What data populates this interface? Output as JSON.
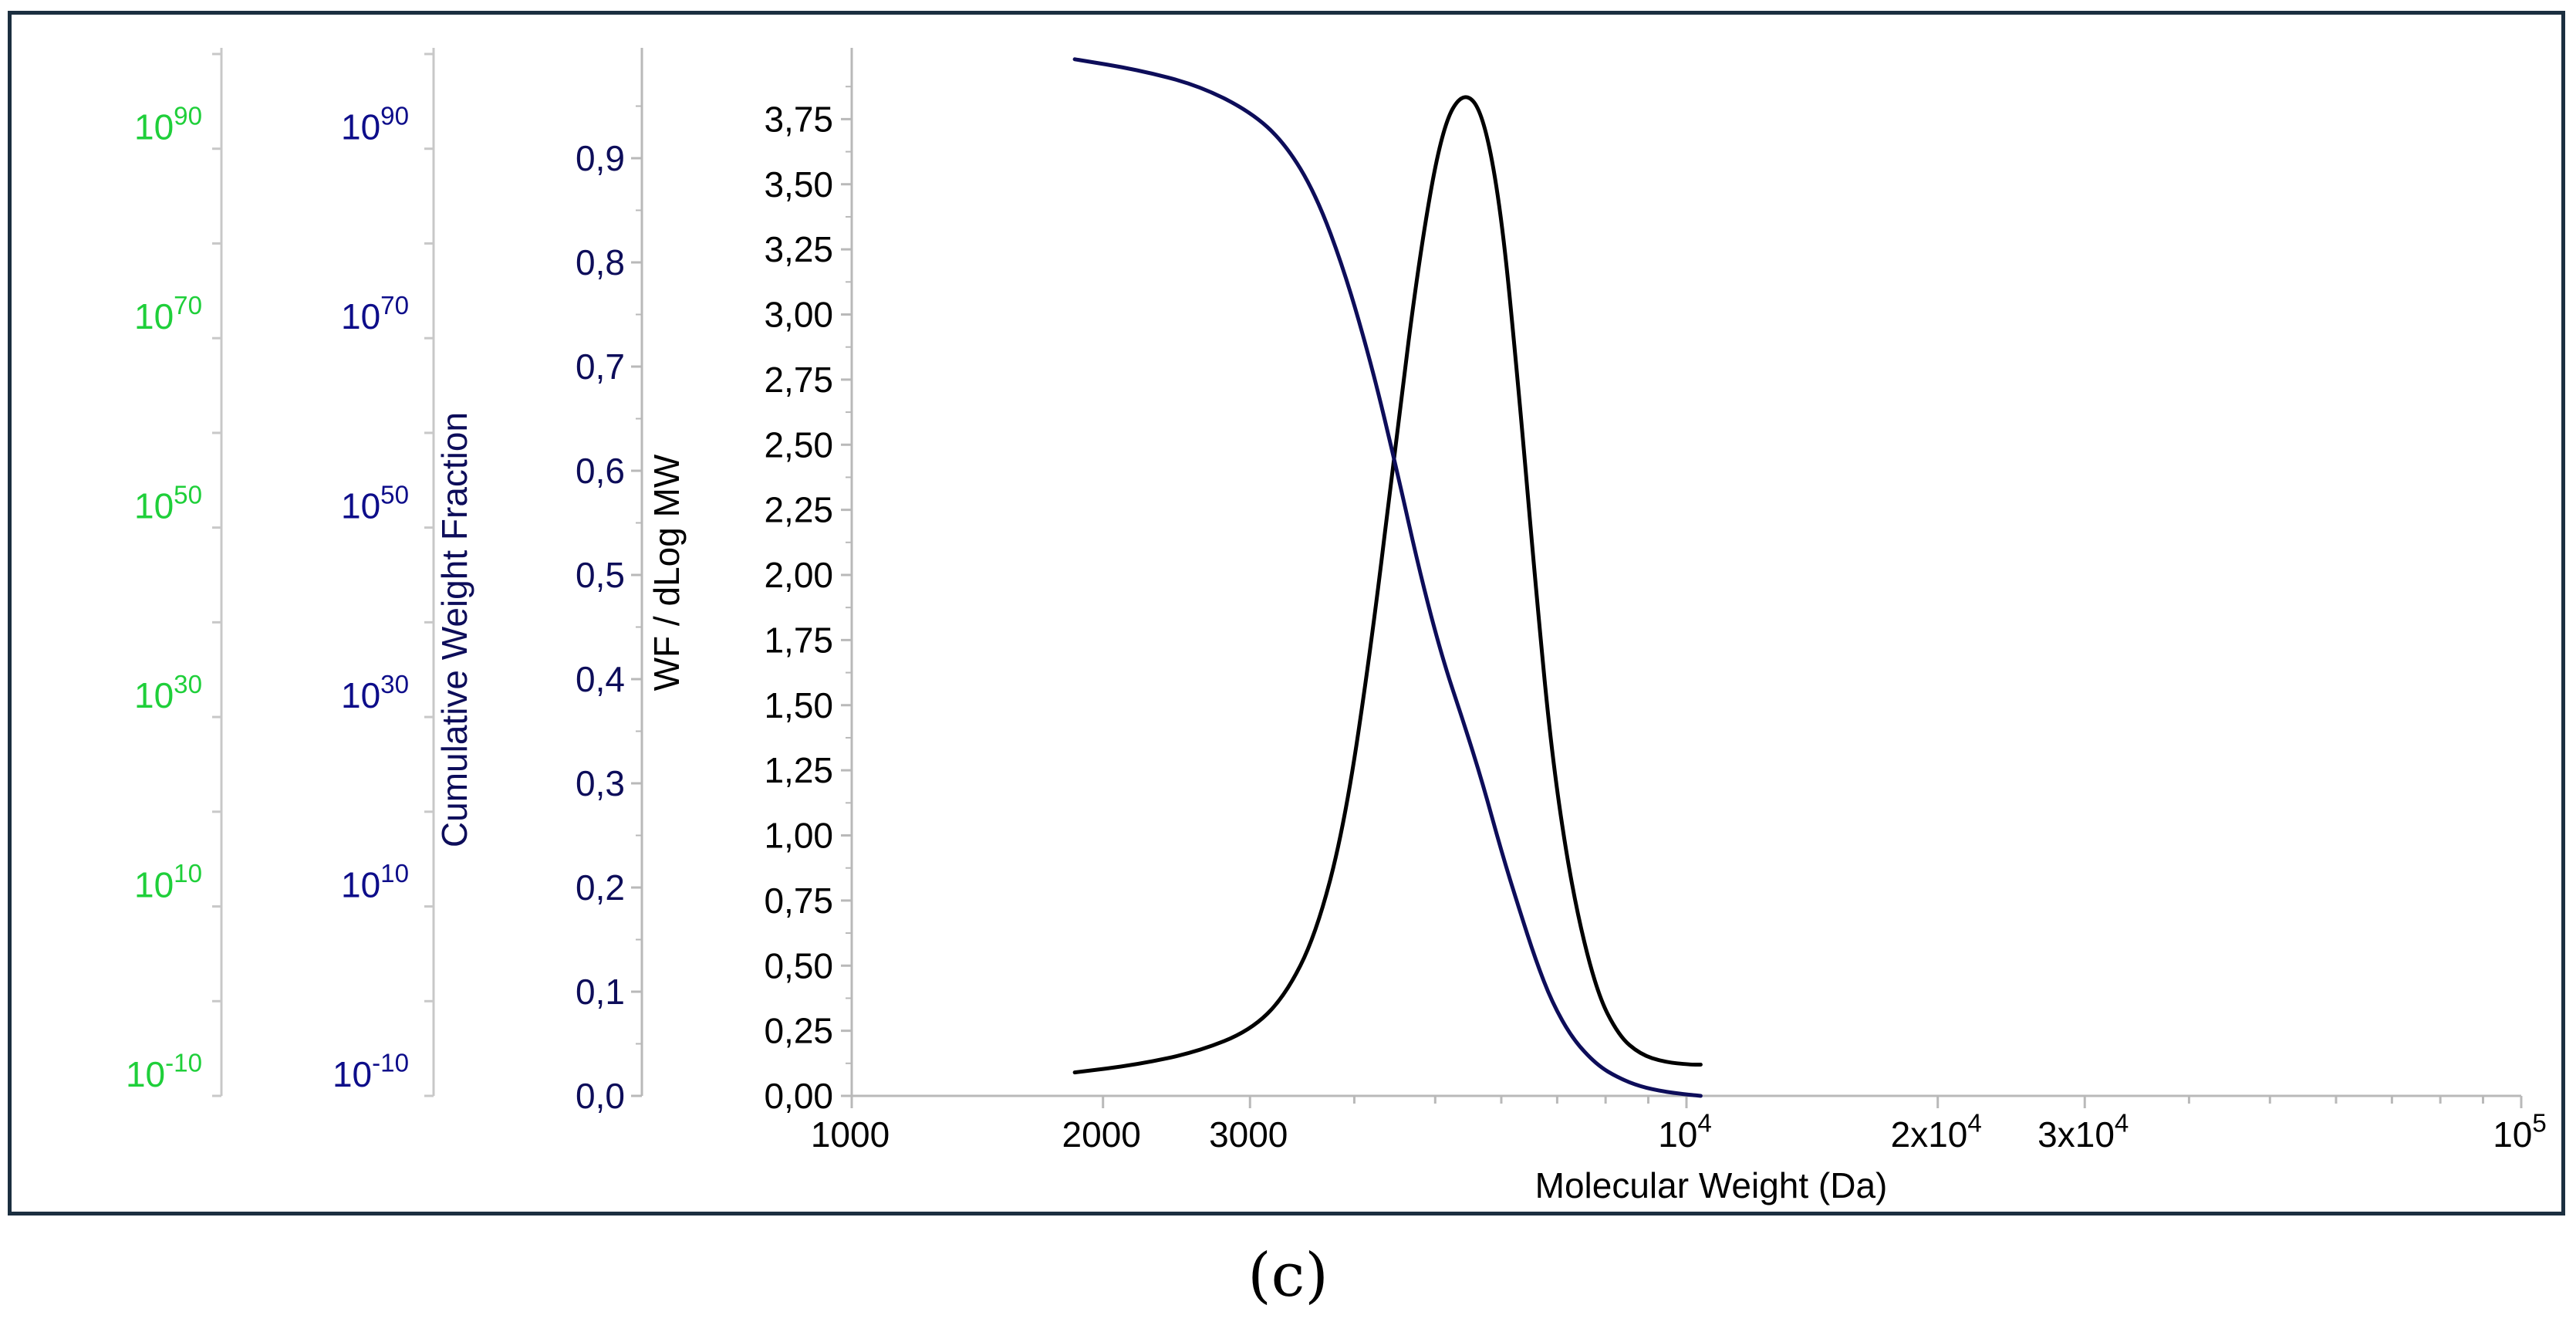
{
  "chart_data": {
    "type": "line",
    "xlabel": "Molecular Weight (Da)",
    "xscale": "log",
    "xlim": [
      1000,
      100000
    ],
    "x_ticks": [
      {
        "value": 1000,
        "base": "1000",
        "exp": ""
      },
      {
        "value": 2000,
        "base": "2000",
        "exp": ""
      },
      {
        "value": 3000,
        "base": "3000",
        "exp": ""
      },
      {
        "value": 10000,
        "base": "10",
        "exp": "4"
      },
      {
        "value": 20000,
        "base": "2x10",
        "exp": "4"
      },
      {
        "value": 30000,
        "base": "3x10",
        "exp": "4"
      },
      {
        "value": 100000,
        "base": "10",
        "exp": "5"
      }
    ],
    "y_axes": [
      {
        "id": "wf",
        "label": "WF / dLog MW",
        "color": "#000000",
        "range": [
          0,
          4
        ],
        "ticks": [
          "0,00",
          "0,25",
          "0,50",
          "0,75",
          "1,00",
          "1,25",
          "1,50",
          "1,75",
          "2,00",
          "2,25",
          "2,50",
          "2,75",
          "3,00",
          "3,25",
          "3,50",
          "3,75"
        ]
      },
      {
        "id": "cwf",
        "label": "Cumulative Weight Fraction",
        "color": "#0d0d5a",
        "range": [
          0,
          1.0
        ],
        "ticks": [
          "0,0",
          "0,1",
          "0,2",
          "0,3",
          "0,4",
          "0,5",
          "0,6",
          "0,7",
          "0,8",
          "0,9"
        ]
      },
      {
        "id": "log-blue",
        "label": "",
        "color": "#0d0d8a",
        "ticks": [
          {
            "base": "10",
            "exp": "-10"
          },
          {
            "base": "10",
            "exp": "10"
          },
          {
            "base": "10",
            "exp": "30"
          },
          {
            "base": "10",
            "exp": "50"
          },
          {
            "base": "10",
            "exp": "70"
          },
          {
            "base": "10",
            "exp": "90"
          }
        ]
      },
      {
        "id": "log-green",
        "label": "",
        "color": "#1fcf3a",
        "ticks": [
          {
            "base": "10",
            "exp": "-10"
          },
          {
            "base": "10",
            "exp": "10"
          },
          {
            "base": "10",
            "exp": "30"
          },
          {
            "base": "10",
            "exp": "50"
          },
          {
            "base": "10",
            "exp": "70"
          },
          {
            "base": "10",
            "exp": "90"
          }
        ]
      }
    ],
    "series": [
      {
        "name": "WF / dLog MW",
        "axis": "wf",
        "color": "#000000",
        "points": [
          [
            1850,
            0.09
          ],
          [
            2200,
            0.12
          ],
          [
            2600,
            0.17
          ],
          [
            3000,
            0.25
          ],
          [
            3300,
            0.38
          ],
          [
            3600,
            0.62
          ],
          [
            3900,
            1.05
          ],
          [
            4200,
            1.75
          ],
          [
            4500,
            2.55
          ],
          [
            4800,
            3.25
          ],
          [
            5100,
            3.72
          ],
          [
            5400,
            3.86
          ],
          [
            5700,
            3.78
          ],
          [
            6000,
            3.4
          ],
          [
            6300,
            2.7
          ],
          [
            6600,
            1.95
          ],
          [
            6900,
            1.3
          ],
          [
            7300,
            0.78
          ],
          [
            7800,
            0.4
          ],
          [
            8300,
            0.23
          ],
          [
            8800,
            0.16
          ],
          [
            9400,
            0.13
          ],
          [
            10100,
            0.12
          ],
          [
            10400,
            0.12
          ]
        ]
      },
      {
        "name": "Cumulative Weight Fraction",
        "axis": "cwf",
        "color": "#0d0d5a",
        "points": [
          [
            1850,
            0.995
          ],
          [
            2200,
            0.985
          ],
          [
            2600,
            0.97
          ],
          [
            3000,
            0.945
          ],
          [
            3300,
            0.915
          ],
          [
            3600,
            0.865
          ],
          [
            3900,
            0.79
          ],
          [
            4200,
            0.7
          ],
          [
            4500,
            0.6
          ],
          [
            4800,
            0.5
          ],
          [
            5100,
            0.42
          ],
          [
            5400,
            0.36
          ],
          [
            5700,
            0.3
          ],
          [
            6000,
            0.235
          ],
          [
            6300,
            0.18
          ],
          [
            6600,
            0.13
          ],
          [
            6900,
            0.09
          ],
          [
            7300,
            0.055
          ],
          [
            7800,
            0.03
          ],
          [
            8300,
            0.017
          ],
          [
            8800,
            0.009
          ],
          [
            9400,
            0.004
          ],
          [
            10100,
            0.001
          ],
          [
            10400,
            0.0
          ]
        ]
      }
    ]
  },
  "caption": "(c)"
}
